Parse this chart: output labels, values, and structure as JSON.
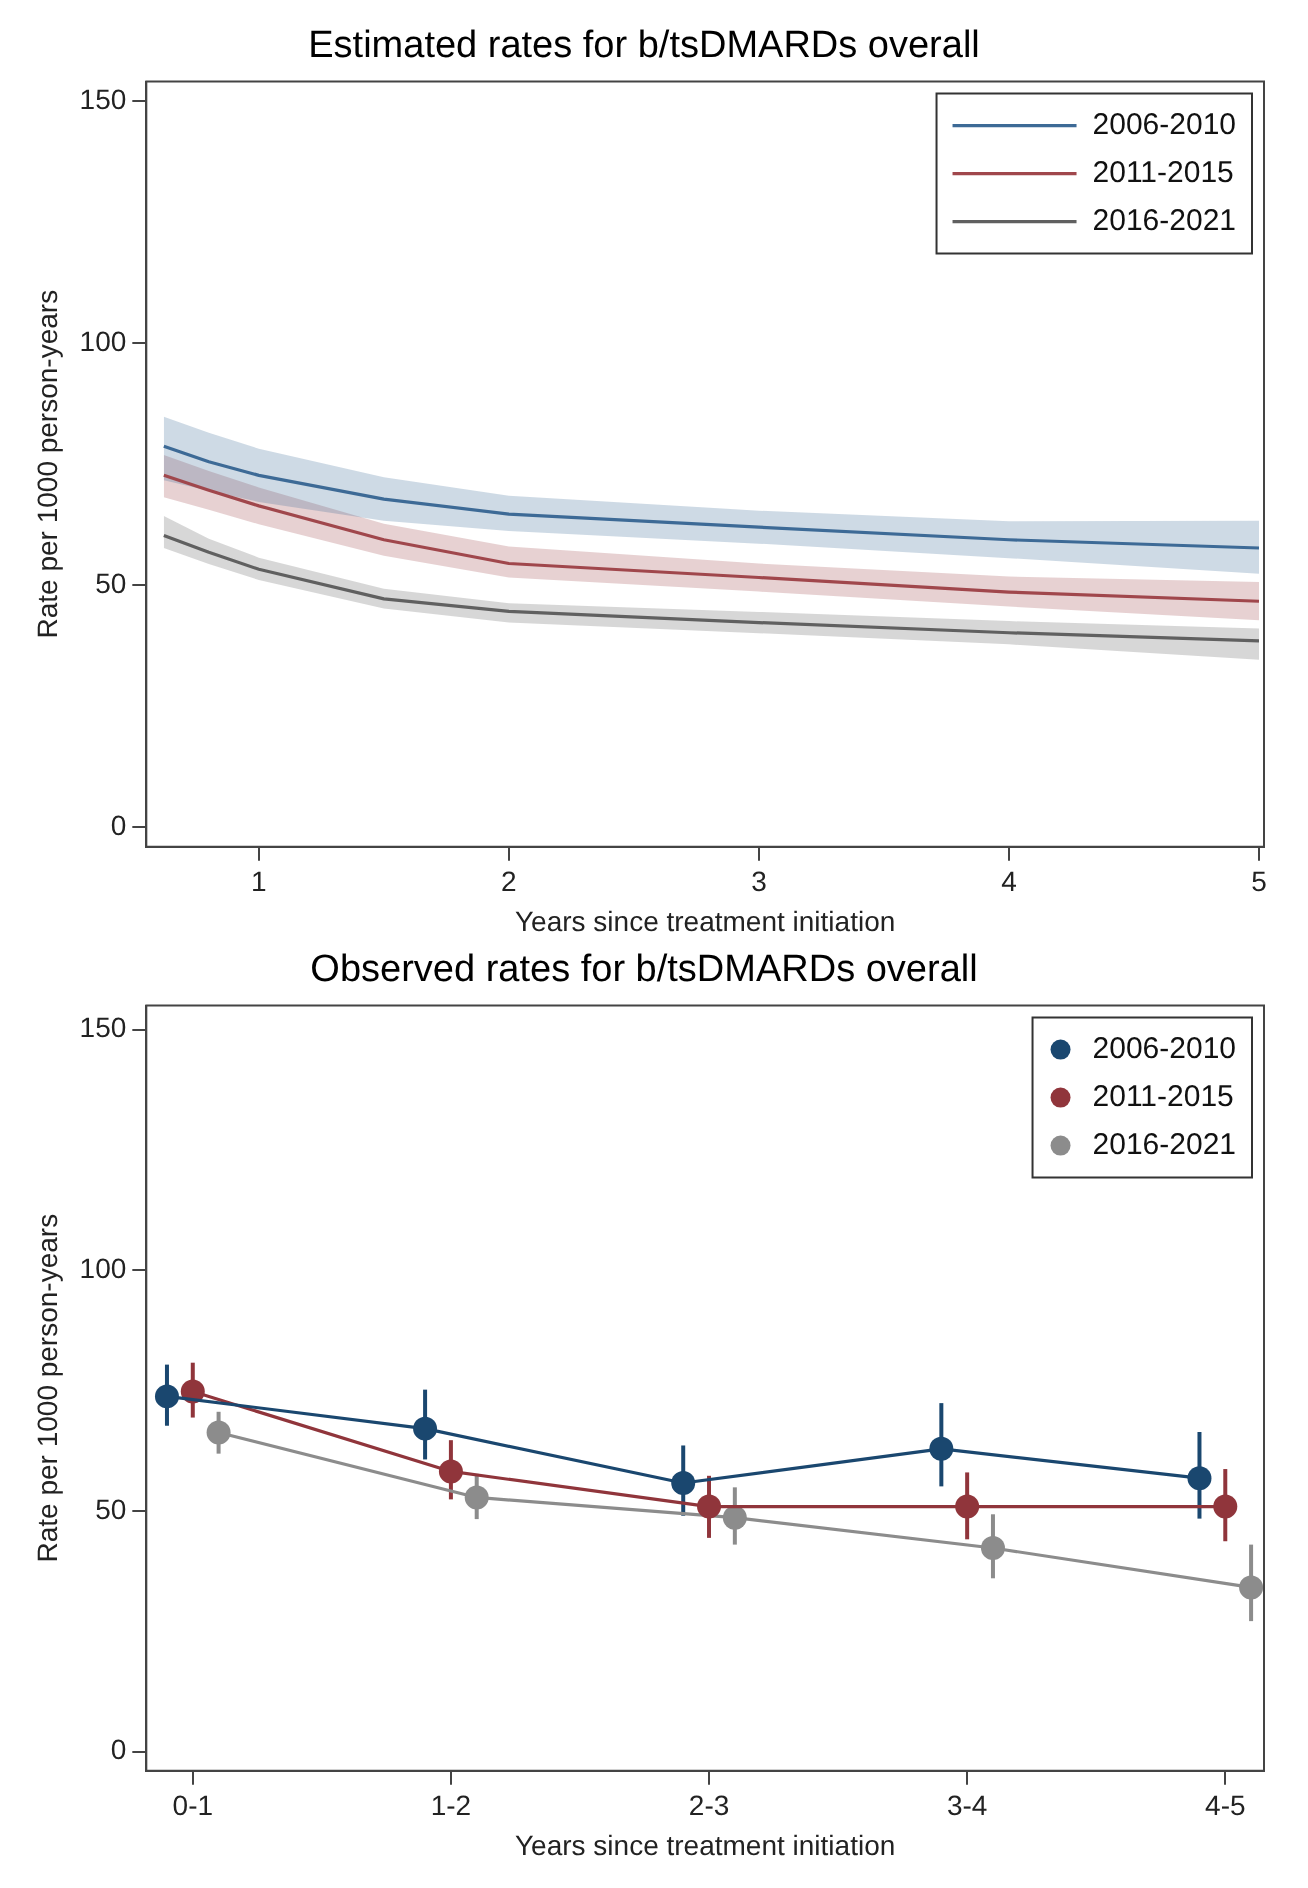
{
  "chart_data": [
    {
      "type": "line",
      "title": "Estimated rates for b/tsDMARDs overall",
      "xlabel": "Years since treatment initiation",
      "ylabel": "Rate per 1000 person-years",
      "xlim": [
        0.55,
        5.02
      ],
      "xticks": [
        1,
        2,
        3,
        4,
        5
      ],
      "ylim": [
        -4,
        154
      ],
      "yticks": [
        0,
        50,
        100,
        150
      ],
      "grid": false,
      "legend": "top right",
      "marker": "none",
      "line_style": "solid",
      "series": [
        {
          "name": "2006-2010",
          "color": "#3d6a96",
          "x": [
            0.62,
            0.8,
            1,
            1.5,
            2,
            3,
            4,
            5
          ],
          "values": [
            78.7,
            75.5,
            72.7,
            67.8,
            64.7,
            62,
            59.4,
            57.7
          ],
          "lower": [
            71.7,
            69.5,
            67.2,
            63.3,
            61.2,
            58.6,
            55.6,
            52.4
          ],
          "upper": [
            84.8,
            81.5,
            78.2,
            72.3,
            68.5,
            65.4,
            63.2,
            63.3
          ]
        },
        {
          "name": "2011-2015",
          "color": "#a0474c",
          "x": [
            0.62,
            0.8,
            1,
            1.5,
            2,
            3,
            4,
            5
          ],
          "values": [
            72.7,
            69.6,
            66.4,
            59.4,
            54.5,
            51.6,
            48.6,
            46.7
          ],
          "lower": [
            68.2,
            65.6,
            62.6,
            56.1,
            51.6,
            48.7,
            45.6,
            42.8
          ],
          "upper": [
            76.9,
            73.6,
            70.2,
            62.7,
            58,
            54.5,
            51.8,
            50.7
          ]
        },
        {
          "name": "2016-2021",
          "color": "#606060",
          "x": [
            0.62,
            0.8,
            1,
            1.5,
            2,
            3,
            4,
            5
          ],
          "values": [
            60.3,
            56.8,
            53.3,
            47.2,
            44.6,
            42.3,
            40.2,
            38.5
          ],
          "lower": [
            57.7,
            54.4,
            51.1,
            45.2,
            42.3,
            40.1,
            37.8,
            34.6
          ],
          "upper": [
            64.3,
            59.6,
            55.7,
            49.3,
            46.3,
            44.5,
            42.6,
            41.1
          ]
        }
      ]
    },
    {
      "type": "line",
      "title": "Observed rates for b/tsDMARDs overall",
      "xlabel": "Years since treatment initiation",
      "ylabel": "Rate per 1000 person-years",
      "categories": [
        "0-1",
        "1-2",
        "2-3",
        "3-4",
        "4-5"
      ],
      "ylim": [
        -4,
        155
      ],
      "yticks": [
        0,
        50,
        100,
        150
      ],
      "grid": false,
      "legend": "top right",
      "marker": "circle",
      "line_style": "solid",
      "series": [
        {
          "name": "2006-2010",
          "color": "#1a476f",
          "values": [
            73.8,
            67.1,
            55.8,
            62.9,
            56.8
          ],
          "errors": [
            [
              67.7,
              80.4
            ],
            [
              60.7,
              75.2
            ],
            [
              49,
              63.6
            ],
            [
              55.1,
              72.4
            ],
            [
              48.4,
              66.4
            ]
          ]
        },
        {
          "name": "2011-2015",
          "color": "#90353b",
          "values": [
            74.8,
            58.2,
            50.9,
            50.9,
            50.9
          ],
          "errors": [
            [
              69.4,
              80.8
            ],
            [
              52.4,
              64.7
            ],
            [
              44.4,
              57.3
            ],
            [
              44.1,
              58
            ],
            [
              43.7,
              58.7
            ]
          ]
        },
        {
          "name": "2016-2021",
          "color": "#8c8c8c",
          "values": [
            66.3,
            52.8,
            48.6,
            42.3,
            34.1
          ],
          "errors": [
            [
              61.9,
              70.6
            ],
            [
              48.3,
              57.7
            ],
            [
              43,
              54.9
            ],
            [
              36,
              49.3
            ],
            [
              27.1,
              43
            ]
          ]
        }
      ]
    }
  ]
}
